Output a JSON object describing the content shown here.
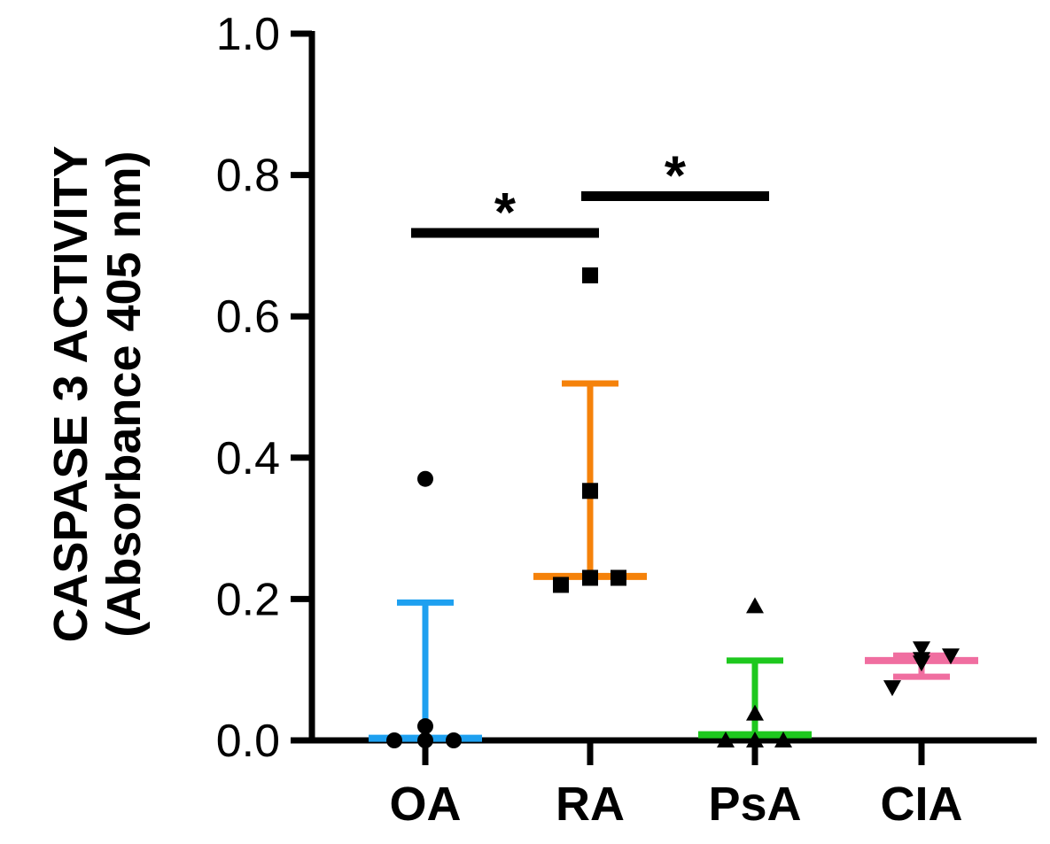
{
  "chart_data": {
    "type": "scatter",
    "subtype": "dot plot with median and interquartile range",
    "ylabel": "CASPASE 3 ACTIVITY",
    "ylabel_sub": "(Absorbance 405 nm)",
    "ylim": [
      0,
      1.0
    ],
    "yticks": [
      "0.0",
      "0.2",
      "0.4",
      "0.6",
      "0.8",
      "1.0"
    ],
    "categories": [
      "OA",
      "RA",
      "PsA",
      "CIA"
    ],
    "groups": [
      {
        "name": "OA",
        "color": "#1ea0f0",
        "marker": "circle",
        "points": [
          0.0,
          0.0,
          0.0,
          0.02,
          0.37
        ],
        "median": 0.003,
        "lower": 0.003,
        "upper": 0.195
      },
      {
        "name": "RA",
        "color": "#f5820a",
        "marker": "square",
        "points": [
          0.22,
          0.23,
          0.23,
          0.353,
          0.658
        ],
        "median": 0.232,
        "lower": 0.232,
        "upper": 0.505
      },
      {
        "name": "PsA",
        "color": "#1ec81e",
        "marker": "triangle-up",
        "points": [
          0.0,
          0.0,
          0.0,
          0.038,
          0.19
        ],
        "median": 0.008,
        "lower": 0.008,
        "upper": 0.113
      },
      {
        "name": "CIA",
        "color": "#f06ea0",
        "marker": "triangle-down",
        "points": [
          0.075,
          0.11,
          0.115,
          0.12,
          0.13
        ],
        "median": 0.113,
        "lower": 0.09,
        "upper": 0.12
      }
    ],
    "significance": [
      {
        "from": "OA",
        "to": "RA",
        "y": 0.718,
        "label": "*"
      },
      {
        "from": "RA",
        "to": "PsA",
        "y": 0.77,
        "label": "*"
      }
    ]
  }
}
